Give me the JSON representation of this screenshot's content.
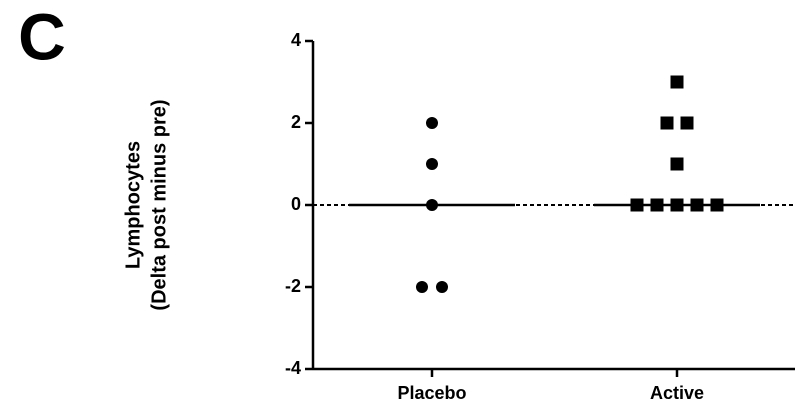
{
  "chart_data": {
    "type": "dotplot",
    "panel_label": "C",
    "ylabel": [
      "Lymphocytes",
      "(Delta post minus pre)"
    ],
    "categories": [
      "Placebo",
      "Active"
    ],
    "markers": [
      "circle",
      "square"
    ],
    "color": "#000000",
    "points": [
      [
        2,
        1,
        0,
        -2,
        -2
      ],
      [
        3,
        2,
        2,
        1,
        0,
        0,
        0,
        0,
        0
      ]
    ],
    "medians": [
      0,
      0
    ],
    "hline": 0,
    "ylim": [
      -4,
      4
    ],
    "yticks": [
      -4,
      -2,
      0,
      2,
      4
    ]
  }
}
